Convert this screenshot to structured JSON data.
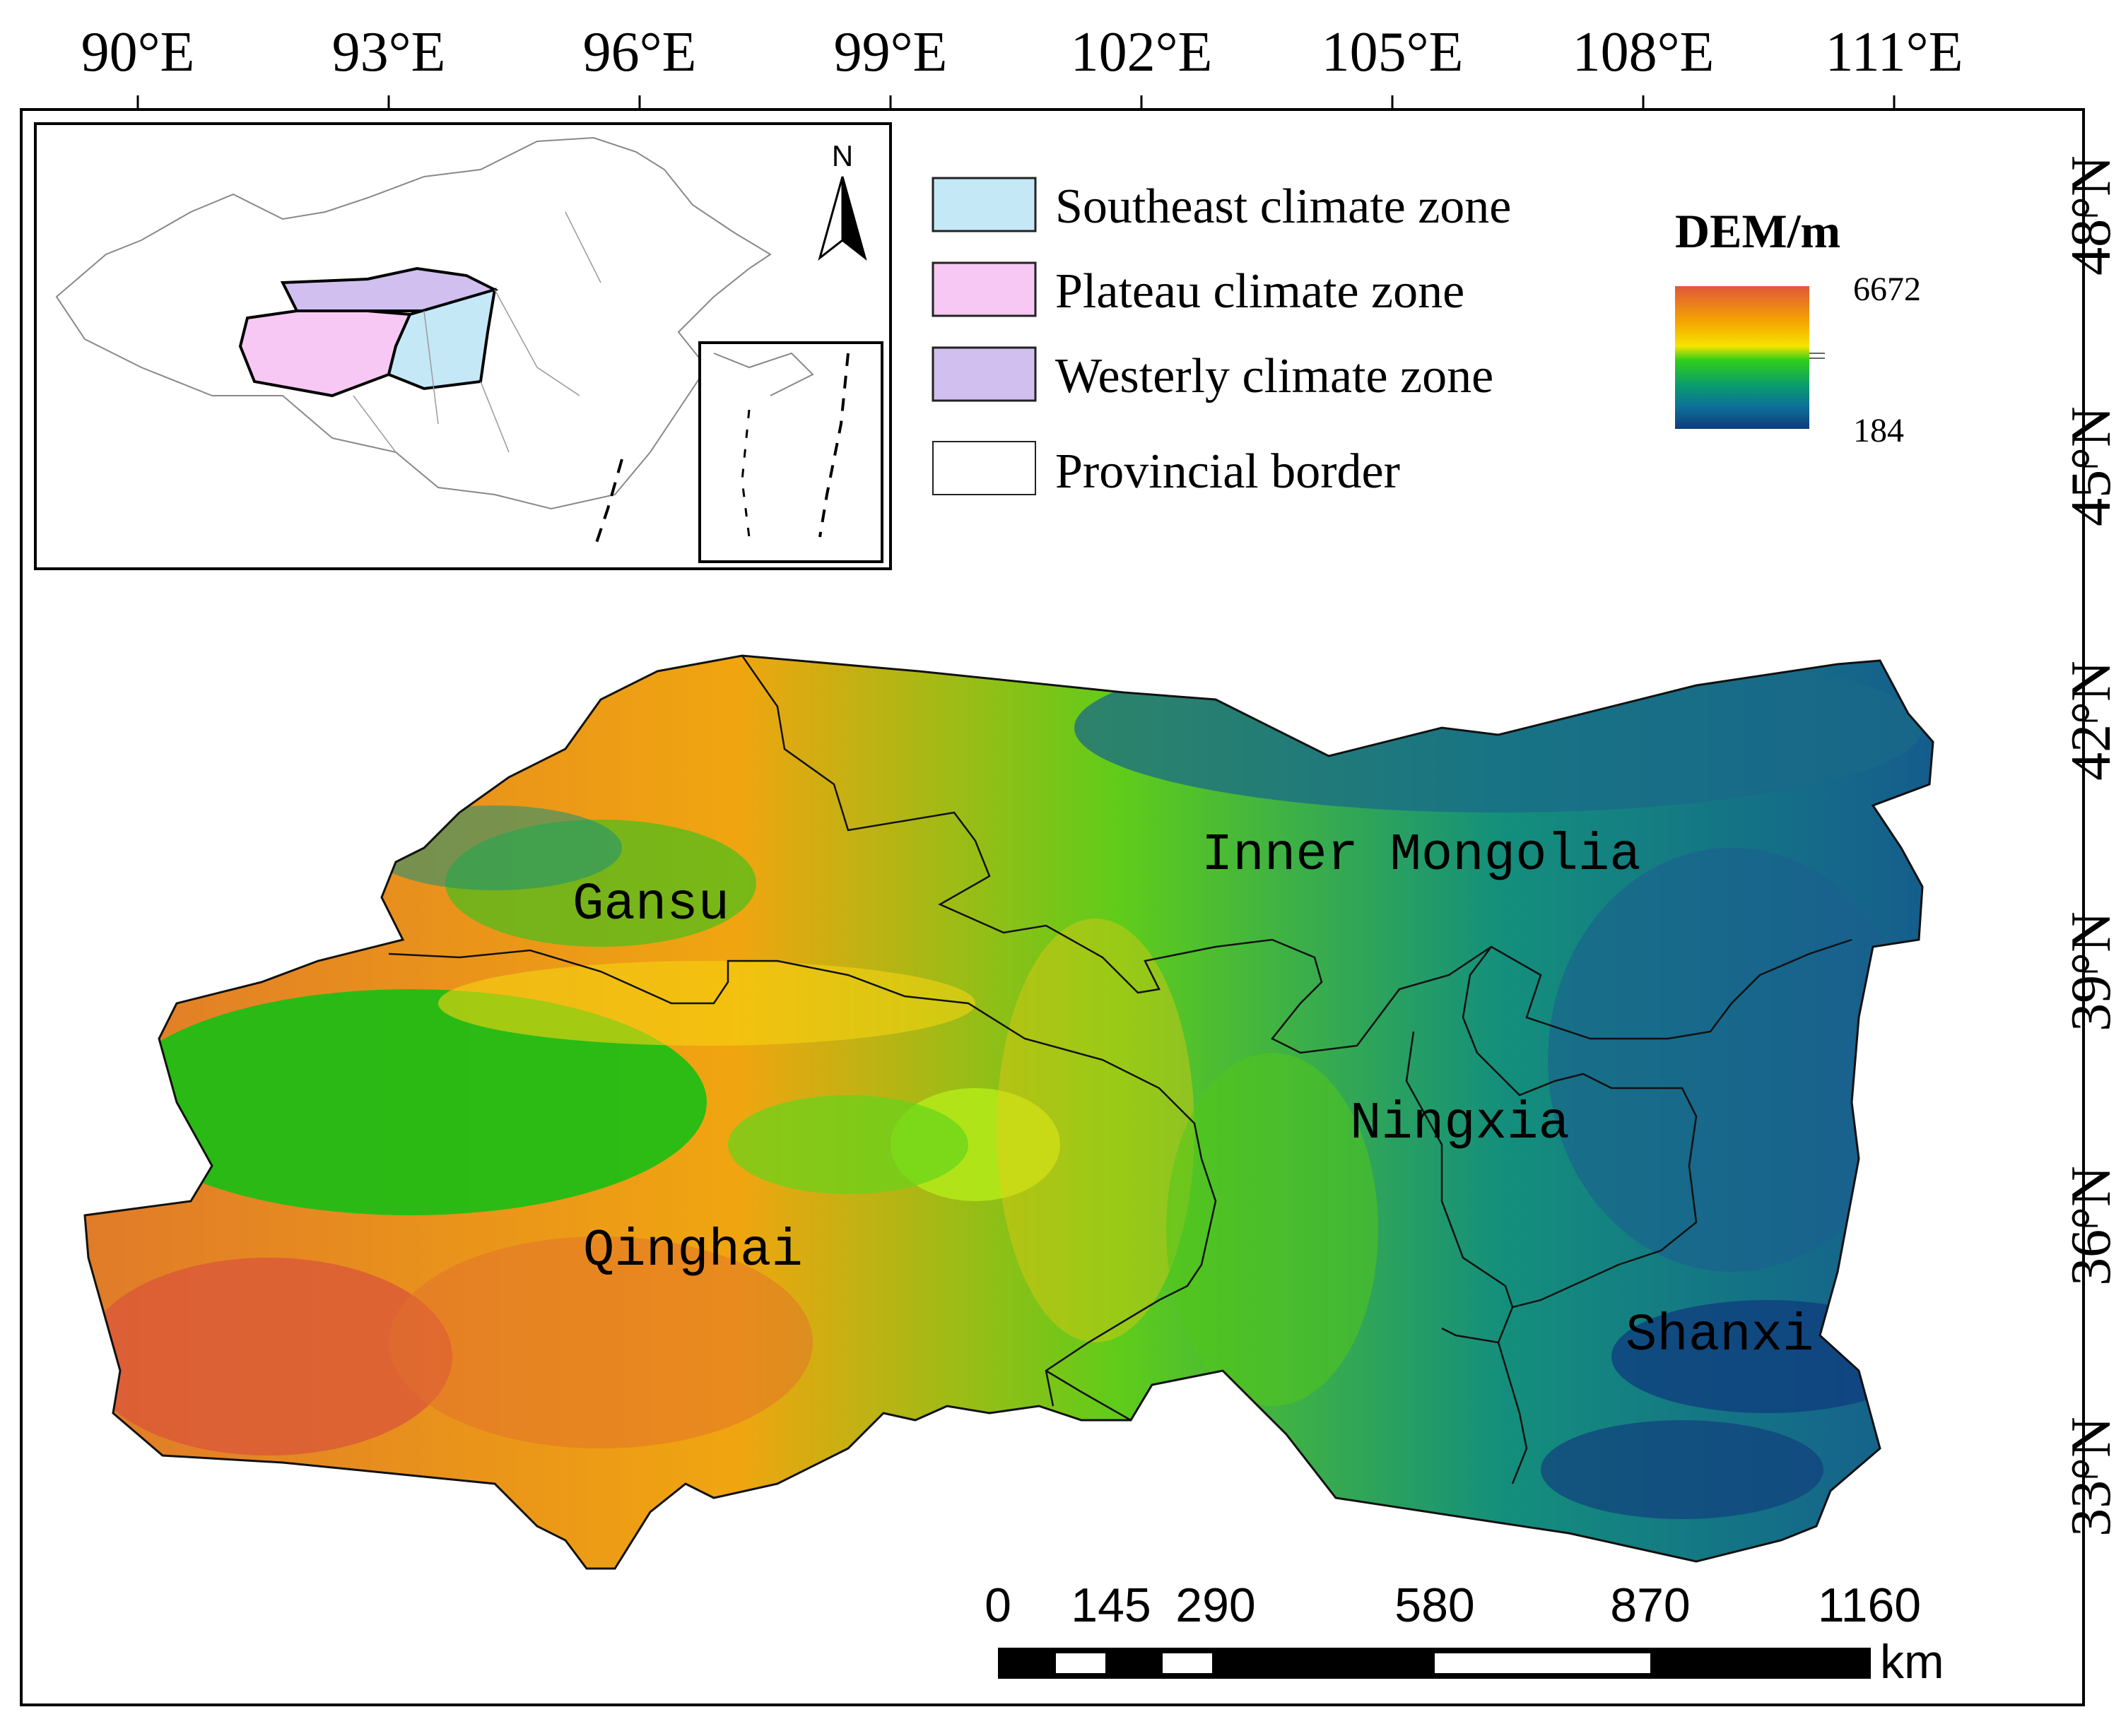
{
  "map": {
    "longitude_ticks": [
      "90°E",
      "93°E",
      "96°E",
      "99°E",
      "102°E",
      "105°E",
      "108°E",
      "111°E"
    ],
    "latitude_ticks": [
      "48°N",
      "45°N",
      "42°N",
      "39°N",
      "36°N",
      "33°N"
    ],
    "legend": {
      "items": [
        {
          "label": "Southeast climate zone",
          "color": "#c5e8f7"
        },
        {
          "label": "Plateau climate zone",
          "color": "#f7c8f3"
        },
        {
          "label": "Westerly climate zone",
          "color": "#d1bff0"
        },
        {
          "label": "Provincial border",
          "color": "#ffffff"
        }
      ]
    },
    "dem": {
      "title": "DEM/m",
      "max": "6672",
      "min": "184",
      "colors": [
        "#e0583a",
        "#f5a500",
        "#f7e400",
        "#2fce19",
        "#0a9b70",
        "#0d6e97",
        "#0e3c7c"
      ]
    },
    "regions": [
      "Inner Mongolia",
      "Gansu",
      "Ningxia",
      "Qinghai",
      "Shanxi"
    ],
    "north_arrow": "N",
    "scale_bar": {
      "labels": [
        "0",
        "145",
        "290",
        "580",
        "870",
        "1160"
      ],
      "unit": "km"
    }
  }
}
